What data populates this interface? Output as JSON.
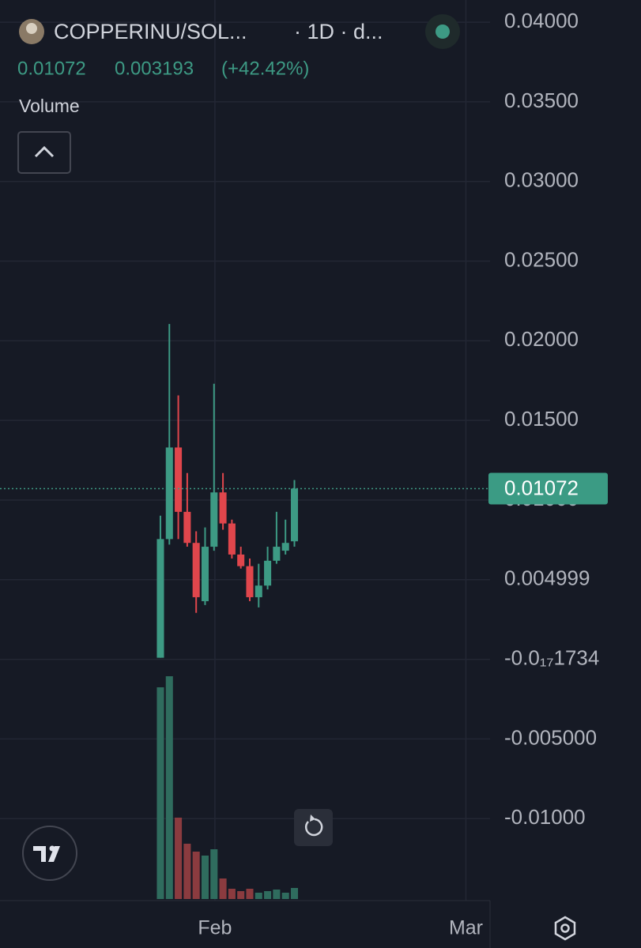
{
  "header": {
    "symbol": "COPPERINU/SOL...",
    "interval": "· 1D · d...",
    "change": 0.003193,
    "change_label": "(+42.42%)",
    "indicator": "Volume"
  },
  "chart_data": {
    "type": "candlestick",
    "categories": [
      null,
      null,
      null,
      null,
      null,
      null,
      null,
      null,
      null,
      null,
      null,
      null,
      null,
      null,
      null,
      null
    ],
    "open": [
      0.0001,
      0.00755,
      0.0133,
      0.00926,
      0.00731,
      0.00365,
      0.00707,
      0.01048,
      0.00853,
      0.00658,
      0.00585,
      0.0039,
      0.00463,
      0.00619,
      0.00682,
      0.00741
    ],
    "high": [
      0.00902,
      0.02105,
      0.01657,
      0.0117,
      0.00804,
      0.00828,
      0.0173,
      0.0117,
      0.00877,
      0.00707,
      0.00633,
      0.006,
      0.00707,
      0.00926,
      0.00877,
      0.01126
    ],
    "low": [
      0.0001,
      0.0072,
      0.00755,
      0.00707,
      0.00292,
      0.00341,
      0.00682,
      0.00814,
      0.00633,
      0.0057,
      0.00365,
      0.00326,
      0.00439,
      0.006,
      0.00658,
      0.00707
    ],
    "close": [
      0.00755,
      0.0133,
      0.00926,
      0.00731,
      0.0039,
      0.00707,
      0.01048,
      0.00853,
      0.00658,
      0.00585,
      0.0039,
      0.00463,
      0.00619,
      0.00707,
      0.00731,
      0.01072
    ],
    "volume": [
      268,
      282,
      103,
      70,
      60,
      55,
      63,
      26,
      13,
      10,
      13,
      8,
      10,
      12,
      8,
      14
    ],
    "up_color": "#3d9a84",
    "down_color": "#e0464c",
    "up_volume_color": "#2f6c5e",
    "down_volume_color": "#8b3b3f",
    "xlim": [
      -17.96,
      36.9
    ],
    "xticks": [
      {
        "value": 6.1,
        "label": "Feb"
      },
      {
        "value": 34.2,
        "label": "Mar"
      }
    ],
    "ylim": [
      -0.0148,
      0.0407
    ],
    "yticks": [
      {
        "value": 0.04,
        "label": "0.04000"
      },
      {
        "value": 0.035,
        "label": "0.03500"
      },
      {
        "value": 0.03,
        "label": "0.03000"
      },
      {
        "value": 0.025,
        "label": "0.02500"
      },
      {
        "value": 0.02,
        "label": "0.02000"
      },
      {
        "value": 0.015,
        "label": "0.01500"
      },
      {
        "value": 0.01,
        "label": "0.01000"
      },
      0.004999,
      {
        "value": -1.734e-18,
        "label": "-0.0₁₇1734"
      },
      {
        "value": -0.005,
        "label": "-0.005000"
      },
      {
        "value": -0.01,
        "label": "-0.01000"
      }
    ],
    "grid": true
  }
}
